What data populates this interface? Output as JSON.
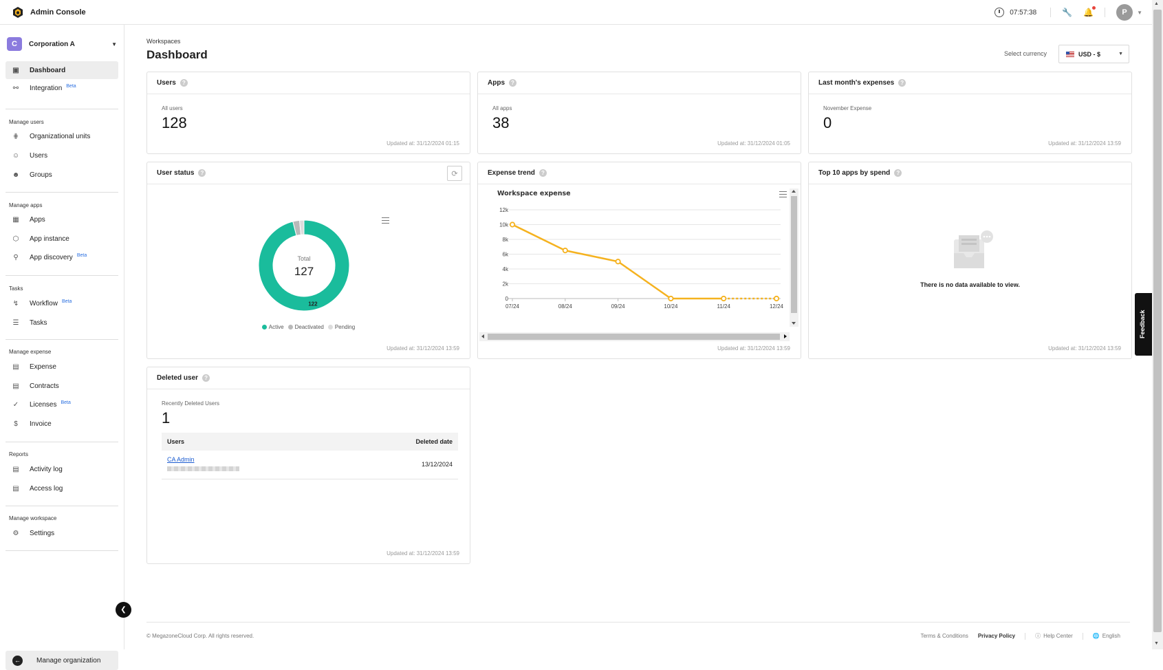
{
  "app": {
    "title": "Admin Console",
    "time": "07:57:38",
    "user_initial": "P"
  },
  "sidebar": {
    "org_initial": "C",
    "org_name": "Corporation A",
    "items": [
      {
        "label": "Dashboard",
        "icon": "dashboard-icon"
      },
      {
        "label": "Integration",
        "icon": "plug-icon",
        "badge": "Beta"
      }
    ],
    "sections": [
      {
        "title": "Manage users",
        "items": [
          {
            "label": "Organizational units",
            "icon": "org-tree-icon"
          },
          {
            "label": "Users",
            "icon": "user-icon"
          },
          {
            "label": "Groups",
            "icon": "group-icon"
          }
        ]
      },
      {
        "title": "Manage apps",
        "items": [
          {
            "label": "Apps",
            "icon": "apps-grid-icon"
          },
          {
            "label": "App instance",
            "icon": "cube-icon"
          },
          {
            "label": "App discovery",
            "icon": "discovery-icon",
            "badge": "Beta"
          }
        ]
      },
      {
        "title": "Tasks",
        "items": [
          {
            "label": "Workflow",
            "icon": "bolt-icon",
            "badge": "Beta"
          },
          {
            "label": "Tasks",
            "icon": "checklist-icon"
          }
        ]
      },
      {
        "title": "Manage expense",
        "items": [
          {
            "label": "Expense",
            "icon": "card-icon"
          },
          {
            "label": "Contracts",
            "icon": "contract-icon"
          },
          {
            "label": "Licenses",
            "icon": "license-icon",
            "badge": "Beta"
          },
          {
            "label": "Invoice",
            "icon": "invoice-icon"
          }
        ]
      },
      {
        "title": "Reports",
        "items": [
          {
            "label": "Activity log",
            "icon": "activity-log-icon"
          },
          {
            "label": "Access log",
            "icon": "access-log-icon"
          }
        ]
      },
      {
        "title": "Manage workspace",
        "items": [
          {
            "label": "Settings",
            "icon": "gear-icon"
          }
        ]
      }
    ],
    "manage_org": "Manage organization"
  },
  "main": {
    "breadcrumb": "Workspaces",
    "title": "Dashboard",
    "currency_label": "Select currency",
    "currency_value": "USD - $"
  },
  "cards": {
    "users": {
      "title": "Users",
      "label": "All users",
      "value": "128",
      "updated": "Updated at: 31/12/2024 01:15"
    },
    "apps": {
      "title": "Apps",
      "label": "All apps",
      "value": "38",
      "updated": "Updated at: 31/12/2024 01:05"
    },
    "expenses": {
      "title": "Last month's expenses",
      "label": "November Expense",
      "value": "0",
      "updated": "Updated at: 31/12/2024 13:59"
    },
    "user_status": {
      "title": "User status",
      "total_label": "Total",
      "total_value": "127",
      "updated": "Updated at: 31/12/2024 13:59",
      "legend": [
        "Active",
        "Deactivated",
        "Pending"
      ]
    },
    "expense_trend": {
      "title": "Expense trend",
      "chart_title": "Workspace expense",
      "updated": "Updated at: 31/12/2024 13:59"
    },
    "top_apps": {
      "title": "Top 10 apps by spend",
      "empty_text": "There is no data available to view.",
      "updated": "Updated at: 31/12/2024 13:59"
    },
    "deleted_user": {
      "title": "Deleted user",
      "label": "Recently Deleted Users",
      "value": "1",
      "col_users": "Users",
      "col_date": "Deleted date",
      "rows": [
        {
          "name": "CA Admin",
          "date": "13/12/2024"
        }
      ],
      "updated": "Updated at: 31/12/2024 13:59"
    }
  },
  "chart_data": [
    {
      "type": "pie",
      "title": "",
      "categories": [
        "Active",
        "Deactivated",
        "Pending"
      ],
      "values": [
        122,
        3,
        2
      ],
      "data_labels": [
        "122"
      ],
      "colors": [
        "#1abc9c",
        "#b9b9b9",
        "#dcdcdc"
      ],
      "donut": true
    },
    {
      "type": "line",
      "title": "Workspace expense",
      "x": [
        "07/24",
        "08/24",
        "09/24",
        "10/24",
        "11/24",
        "12/24"
      ],
      "series": [
        {
          "values": [
            10000,
            6500,
            5000,
            0,
            0,
            0
          ]
        }
      ],
      "y_ticks": [
        "0",
        "2k",
        "4k",
        "6k",
        "8k",
        "10k",
        "12k"
      ],
      "ylim": [
        0,
        12000
      ],
      "grid": true,
      "colors": [
        "#f5b21f"
      ],
      "dashed_last_segment": true
    }
  ],
  "footer": {
    "copyright": "© MegazoneCloud Corp. All rights reserved.",
    "terms": "Terms & Conditions",
    "privacy": "Privacy Policy",
    "help": "Help Center",
    "language": "English"
  },
  "feedback_label": "Feedback"
}
